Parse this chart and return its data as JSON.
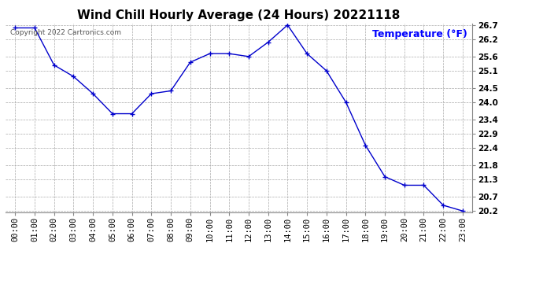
{
  "title": "Wind Chill Hourly Average (24 Hours) 20221118",
  "copyright_text": "Copyright 2022 Cartronics.com",
  "ylabel": "Temperature (°F)",
  "ylabel_color": "#0000ff",
  "hours": [
    "00:00",
    "01:00",
    "02:00",
    "03:00",
    "04:00",
    "05:00",
    "06:00",
    "07:00",
    "08:00",
    "09:00",
    "10:00",
    "11:00",
    "12:00",
    "13:00",
    "14:00",
    "15:00",
    "16:00",
    "17:00",
    "18:00",
    "19:00",
    "20:00",
    "21:00",
    "22:00",
    "23:00"
  ],
  "values": [
    26.6,
    26.6,
    25.3,
    24.9,
    24.3,
    23.6,
    23.6,
    24.3,
    24.4,
    25.4,
    25.7,
    25.7,
    25.6,
    26.1,
    26.7,
    25.7,
    25.1,
    24.0,
    22.5,
    21.4,
    21.1,
    21.1,
    20.4,
    20.2
  ],
  "line_color": "#0000cc",
  "marker": "+",
  "marker_size": 5,
  "ylim_min": 20.15,
  "ylim_max": 26.75,
  "yticks": [
    20.2,
    20.7,
    21.3,
    21.8,
    22.4,
    22.9,
    23.4,
    24.0,
    24.5,
    25.1,
    25.6,
    26.2,
    26.7
  ],
  "background_color": "#ffffff",
  "grid_color": "#aaaaaa",
  "title_fontsize": 11,
  "tick_fontsize": 7.5,
  "copyright_fontsize": 6.5,
  "ylabel_fontsize": 9
}
